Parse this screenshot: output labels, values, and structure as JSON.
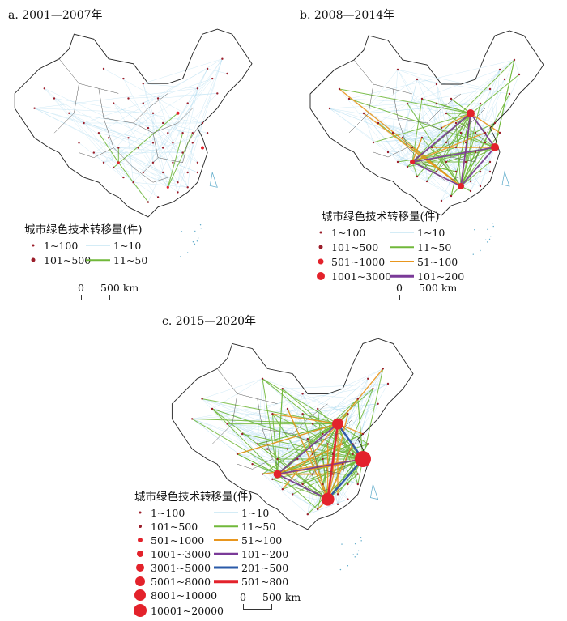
{
  "panels": [
    {
      "id": "a",
      "title": "a. 2001—2007年",
      "legend_title": "城市绿色技术转移量(件)",
      "point_classes": [
        "1~100",
        "101~500"
      ],
      "line_classes": [
        "1~10",
        "11~50"
      ],
      "scale_zero": "0",
      "scale_label": "500 km"
    },
    {
      "id": "b",
      "title": "b. 2008—2014年",
      "legend_title": "城市绿色技术转移量(件)",
      "point_classes": [
        "1~100",
        "101~500",
        "501~1000",
        "1001~3000"
      ],
      "line_classes": [
        "1~10",
        "11~50",
        "51~100",
        "101~200"
      ],
      "scale_zero": "0",
      "scale_label": "500 km"
    },
    {
      "id": "c",
      "title": "c. 2015—2020年",
      "legend_title": "城市绿色技术转移量(件)",
      "point_classes": [
        "1~100",
        "101~500",
        "501~1000",
        "1001~3000",
        "3001~5000",
        "5001~8000",
        "8001~10000",
        "10001~20000"
      ],
      "line_classes": [
        "1~10",
        "11~50",
        "51~100",
        "101~200",
        "201~500",
        "501~800"
      ],
      "scale_zero": "0",
      "scale_label": "500 km"
    }
  ],
  "colors": {
    "point": "#e3222b",
    "point_small": "#9b1d2a",
    "line_1_10": "#a9d8ee",
    "line_11_50": "#71b83a",
    "line_51_100": "#e8961e",
    "line_101_200": "#7a3a98",
    "line_201_500": "#2a5aa8",
    "line_501_800": "#e3222b",
    "boundary": "#222222"
  }
}
